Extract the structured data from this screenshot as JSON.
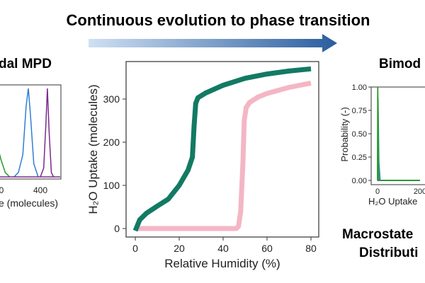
{
  "title": "Continuous evolution to phase transition",
  "colors": {
    "green": "#127a63",
    "pink": "#f4b6c4",
    "blue": "#2f7fd0",
    "purple": "#7b2a8c",
    "green_light": "#2a9a2a",
    "arrow_start": "#cfe0f3",
    "arrow_end": "#2a5d9e"
  },
  "left_panel": {
    "title": "dal MPD",
    "xlabel": "e (molecules)",
    "xticks": [
      "0",
      "400"
    ]
  },
  "right_panel": {
    "title": "Bimod",
    "ylabel": "Probability (-)",
    "yticks": [
      "1.00",
      "0.75",
      "0.50",
      "0.25",
      "0.00"
    ],
    "xticks": [
      "0",
      "200"
    ],
    "xlabel": "H₂O Uptake",
    "caption_line1": "Macrostate",
    "caption_line2": "Distributi"
  },
  "chart_data": [
    {
      "type": "line",
      "title": "",
      "xlabel": "Relative Humidity (%)",
      "ylabel": "H₂O Uptake (molecules)",
      "xlim": [
        -2,
        83
      ],
      "ylim": [
        -20,
        385
      ],
      "xticks": [
        0,
        20,
        40,
        60,
        80
      ],
      "yticks": [
        0,
        100,
        200,
        300
      ],
      "xtick_labels": [
        "0",
        "20",
        "40",
        "60",
        "80"
      ],
      "ytick_labels": [
        "0",
        "100",
        "200",
        "300"
      ],
      "series": [
        {
          "name": "continuous",
          "color": "#127a63",
          "x": [
            0,
            2,
            5,
            10,
            15,
            20,
            24,
            26,
            26.8,
            27.5,
            28.5,
            32,
            40,
            50,
            60,
            70,
            80
          ],
          "y": [
            -5,
            20,
            35,
            52,
            68,
            100,
            135,
            165,
            240,
            290,
            303,
            314,
            332,
            348,
            358,
            365,
            370
          ]
        },
        {
          "name": "phase transition",
          "color": "#f4b6c4",
          "x": [
            1,
            46,
            47,
            48,
            49,
            49.6,
            50.5,
            52,
            56,
            60,
            70,
            80
          ],
          "y": [
            0,
            0,
            5,
            40,
            150,
            250,
            280,
            292,
            305,
            313,
            327,
            337
          ]
        }
      ]
    },
    {
      "type": "line",
      "title": "dal MPD",
      "xlabel": "e (molecules)",
      "series": [
        {
          "name": "green",
          "color": "#2a9a2a",
          "x": [
            130,
            150,
            170,
            190,
            200,
            210,
            220,
            240,
            260
          ],
          "y": [
            0.9,
            1.0,
            0.85,
            1.0,
            0.6,
            0.3,
            0.2,
            0.05,
            0
          ]
        },
        {
          "name": "blue",
          "color": "#2f7fd0",
          "x": [
            280,
            300,
            320,
            335,
            345,
            355,
            370,
            390
          ],
          "y": [
            0,
            0.05,
            0.25,
            0.8,
            1.0,
            0.7,
            0.15,
            0
          ]
        },
        {
          "name": "purple",
          "color": "#7b2a8c",
          "x": [
            400,
            415,
            425,
            432,
            440,
            450,
            460
          ],
          "y": [
            0,
            0.1,
            0.6,
            1.0,
            0.5,
            0.05,
            0
          ]
        }
      ]
    },
    {
      "type": "line",
      "title": "Bimod",
      "ylabel": "Probability (-)",
      "xlabel": "H₂O Uptake",
      "ylim": [
        0,
        1
      ],
      "series": [
        {
          "name": "green",
          "color": "#2a9a2a",
          "x": [
            0,
            1,
            5,
            10,
            200
          ],
          "y": [
            0,
            1.0,
            0.02,
            0,
            0
          ]
        },
        {
          "name": "blue",
          "color": "#2f7fd0",
          "x": [
            0,
            2,
            6,
            12,
            200
          ],
          "y": [
            0,
            0.88,
            0.2,
            0,
            0
          ]
        },
        {
          "name": "purple",
          "color": "#7b2a8c",
          "x": [
            0,
            200
          ],
          "y": [
            0,
            0
          ]
        }
      ]
    }
  ]
}
